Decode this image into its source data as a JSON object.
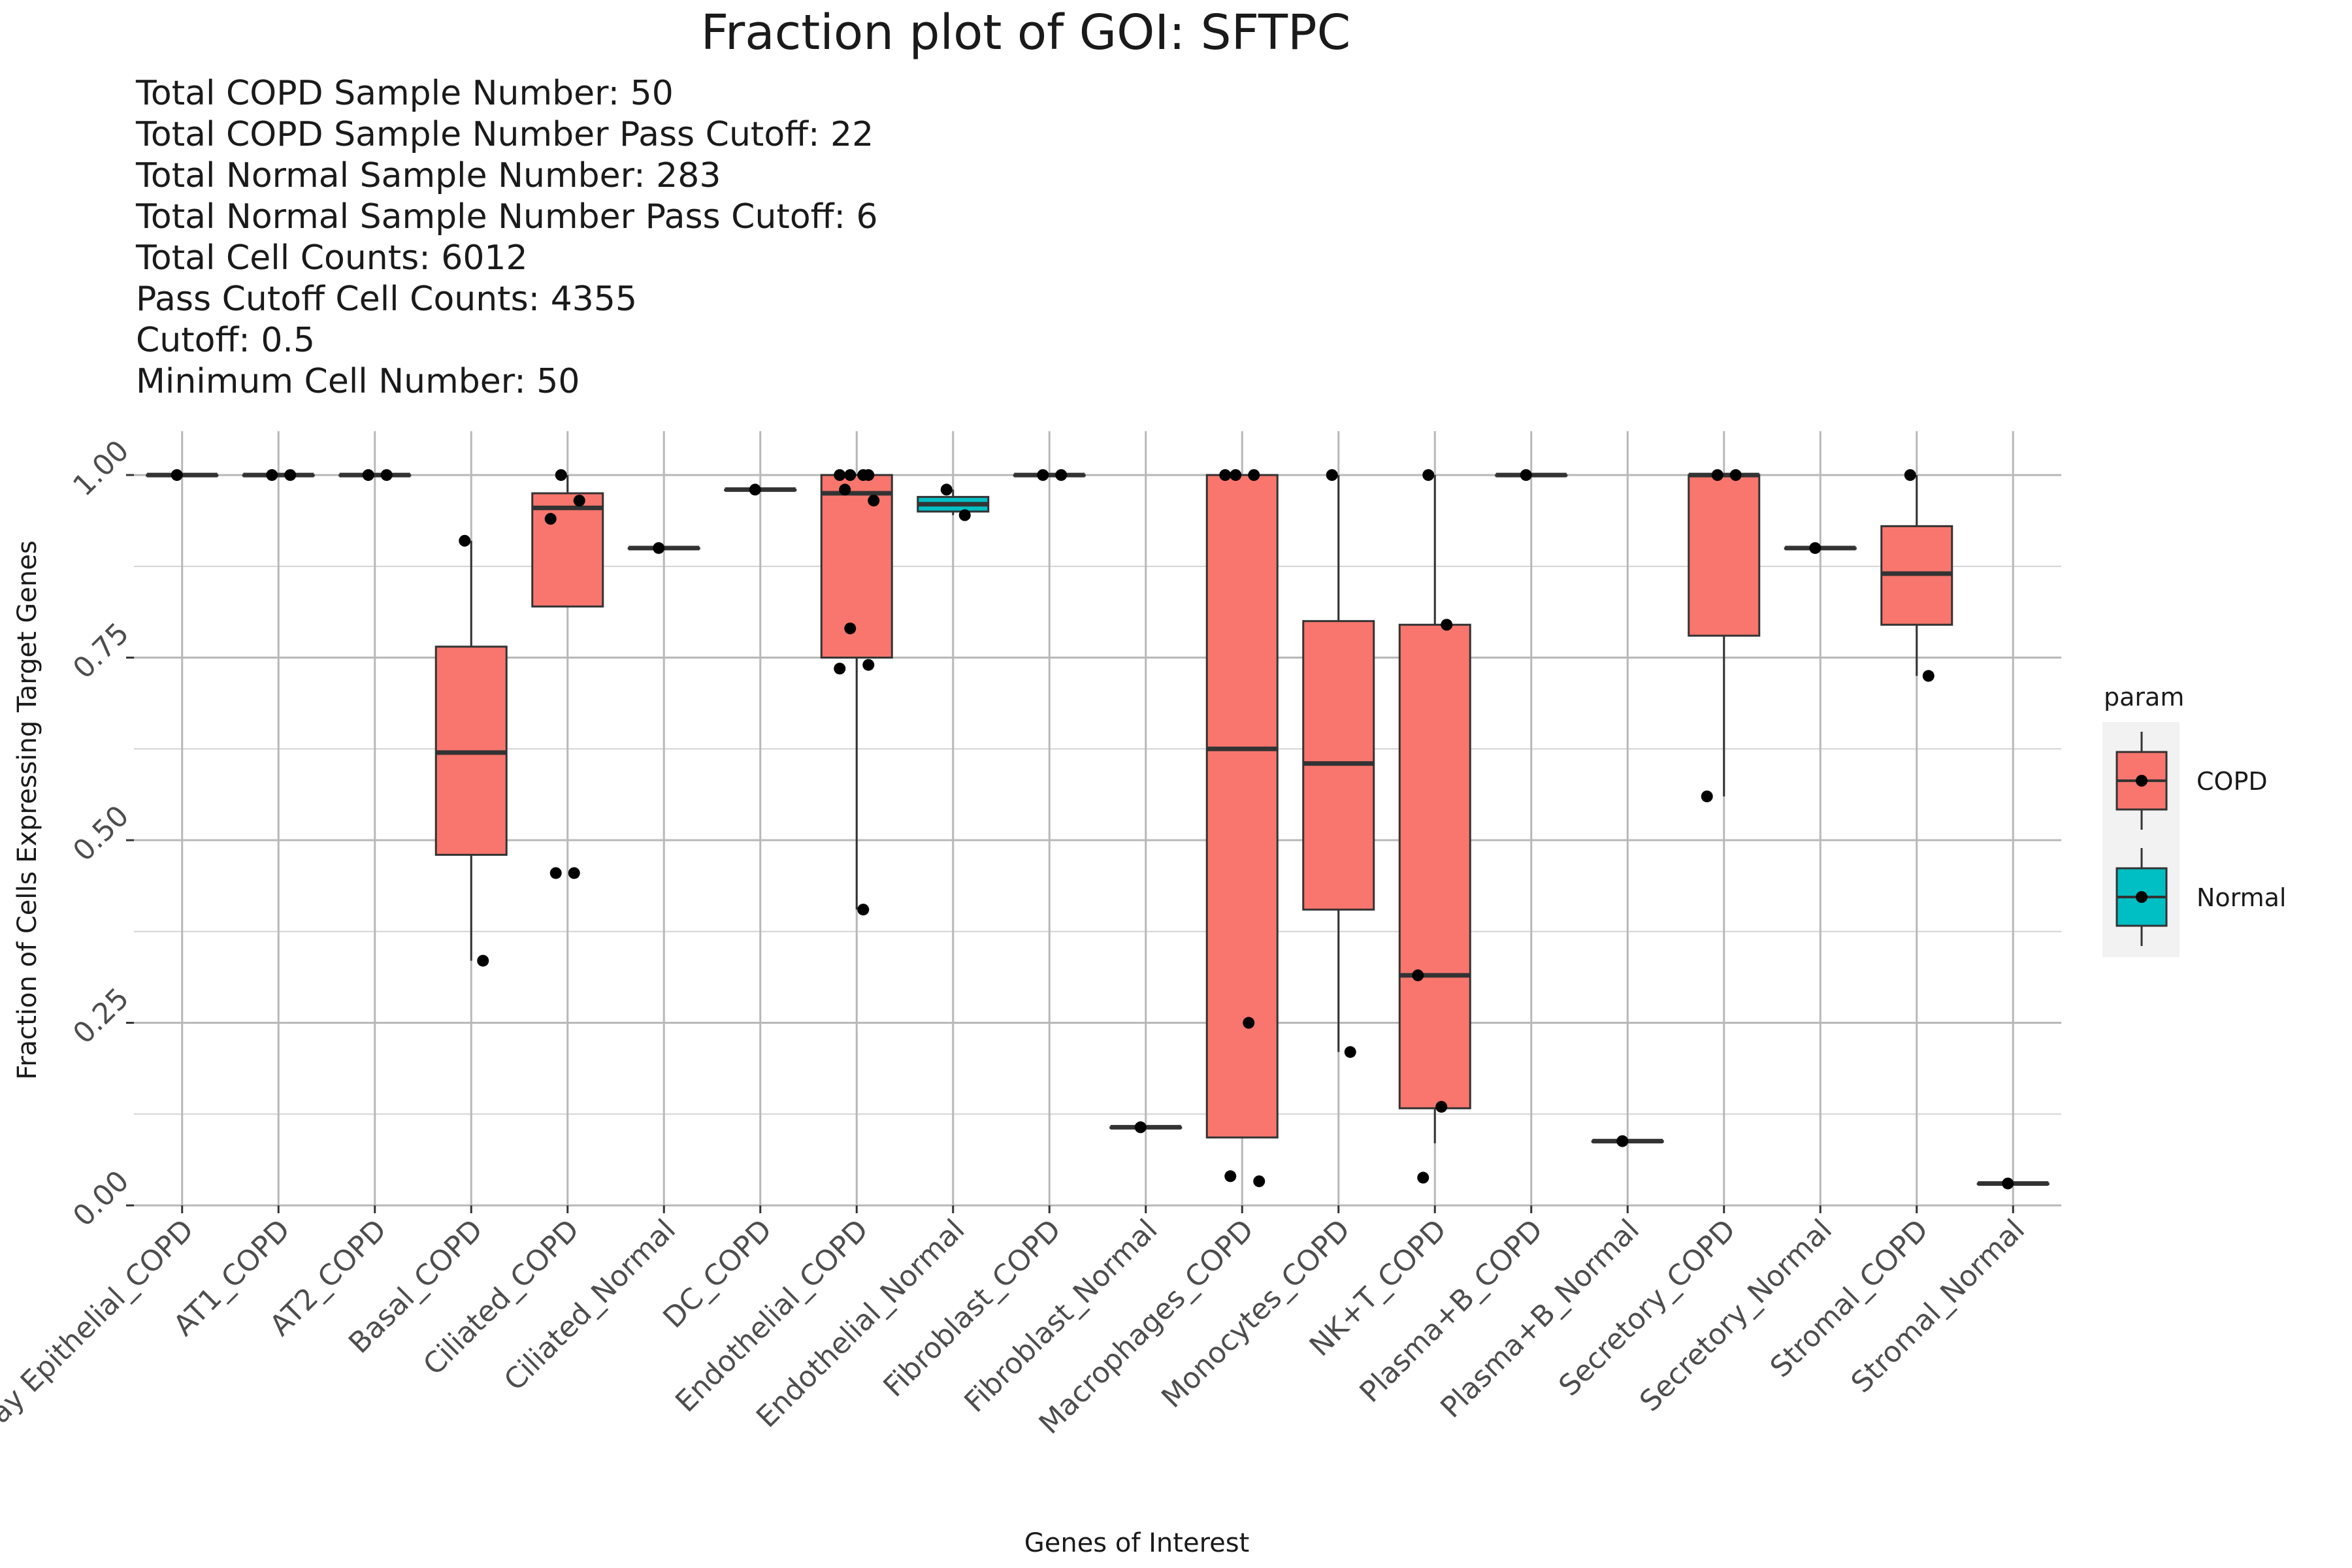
{
  "chart_data": {
    "type": "box",
    "title": "Fraction plot of GOI: SFTPC",
    "subtitle_lines": [
      "Total COPD Sample Number: 50",
      "Total COPD Sample Number Pass Cutoff: 22",
      "Total Normal Sample Number: 283",
      "Total Normal Sample Number Pass Cutoff: 6",
      "Total Cell Counts: 6012",
      "Pass Cutoff Cell Counts: 4355",
      "Cutoff: 0.5",
      "Minimum Cell Number: 50"
    ],
    "xlabel": "Genes of Interest",
    "ylabel": "Fraction of Cells Expressing Target Genes",
    "ylim": [
      0,
      1.06
    ],
    "y_ticks": [
      {
        "value": 0.0,
        "label": "0.00"
      },
      {
        "value": 0.25,
        "label": "0.25"
      },
      {
        "value": 0.5,
        "label": "0.50"
      },
      {
        "value": 0.75,
        "label": "0.75"
      },
      {
        "value": 1.0,
        "label": "1.00"
      }
    ],
    "grid": true,
    "legend": {
      "title": "param",
      "placement": "right",
      "entries": [
        {
          "label": "COPD",
          "color": "#F8766D"
        },
        {
          "label": "Normal",
          "color": "#00BFC4"
        }
      ]
    },
    "categories": [
      {
        "label": "Airway Epithelial_COPD",
        "group": "COPD",
        "box": {
          "q1": 1.0,
          "median": 1.0,
          "q3": 1.0,
          "whisker_low": 1.0,
          "whisker_high": 1.0
        },
        "points": [
          1.0
        ]
      },
      {
        "label": "AT1_COPD",
        "group": "COPD",
        "box": {
          "q1": 1.0,
          "median": 1.0,
          "q3": 1.0,
          "whisker_low": 1.0,
          "whisker_high": 1.0
        },
        "points": [
          1.0,
          1.0
        ]
      },
      {
        "label": "AT2_COPD",
        "group": "COPD",
        "box": {
          "q1": 1.0,
          "median": 1.0,
          "q3": 1.0,
          "whisker_low": 1.0,
          "whisker_high": 1.0
        },
        "points": [
          1.0,
          1.0
        ]
      },
      {
        "label": "Basal_COPD",
        "group": "COPD",
        "box": {
          "q1": 0.48,
          "median": 0.62,
          "q3": 0.765,
          "whisker_low": 0.335,
          "whisker_high": 0.91
        },
        "points": [
          0.91,
          0.335
        ]
      },
      {
        "label": "Ciliated_COPD",
        "group": "COPD",
        "box": {
          "q1": 0.82,
          "median": 0.955,
          "q3": 0.975,
          "whisker_low": 0.82,
          "whisker_high": 1.0
        },
        "points": [
          1.0,
          0.965,
          0.94,
          0.455,
          0.455
        ]
      },
      {
        "label": "Ciliated_Normal",
        "group": "COPD",
        "box": {
          "q1": 0.9,
          "median": 0.9,
          "q3": 0.9,
          "whisker_low": 0.9,
          "whisker_high": 0.9
        },
        "points": [
          0.9
        ]
      },
      {
        "label": "DC_COPD",
        "group": "COPD",
        "box": {
          "q1": 0.98,
          "median": 0.98,
          "q3": 0.98,
          "whisker_low": 0.98,
          "whisker_high": 0.98
        },
        "points": [
          0.98
        ]
      },
      {
        "label": "Endothelial_COPD",
        "group": "COPD",
        "box": {
          "q1": 0.75,
          "median": 0.975,
          "q3": 1.0,
          "whisker_low": 0.405,
          "whisker_high": 1.0
        },
        "points": [
          1.0,
          1.0,
          1.0,
          1.0,
          0.98,
          0.965,
          0.79,
          0.74,
          0.735,
          0.405
        ]
      },
      {
        "label": "Endothelial_Normal",
        "group": "Normal",
        "box": {
          "q1": 0.95,
          "median": 0.96,
          "q3": 0.97,
          "whisker_low": 0.945,
          "whisker_high": 0.98
        },
        "points": [
          0.98,
          0.945
        ]
      },
      {
        "label": "Fibroblast_COPD",
        "group": "COPD",
        "box": {
          "q1": 1.0,
          "median": 1.0,
          "q3": 1.0,
          "whisker_low": 1.0,
          "whisker_high": 1.0
        },
        "points": [
          1.0,
          1.0
        ]
      },
      {
        "label": "Fibroblast_Normal",
        "group": "COPD",
        "box": {
          "q1": 0.107,
          "median": 0.107,
          "q3": 0.107,
          "whisker_low": 0.107,
          "whisker_high": 0.107
        },
        "points": [
          0.107
        ]
      },
      {
        "label": "Macrophages_COPD",
        "group": "COPD",
        "box": {
          "q1": 0.093,
          "median": 0.625,
          "q3": 1.0,
          "whisker_low": 0.093,
          "whisker_high": 1.0
        },
        "points": [
          1.0,
          1.0,
          1.0,
          0.25,
          0.04,
          0.033
        ]
      },
      {
        "label": "Monocytes_COPD",
        "group": "COPD",
        "box": {
          "q1": 0.405,
          "median": 0.605,
          "q3": 0.8,
          "whisker_low": 0.21,
          "whisker_high": 1.0
        },
        "points": [
          1.0,
          0.21
        ]
      },
      {
        "label": "NK+T_COPD",
        "group": "COPD",
        "box": {
          "q1": 0.133,
          "median": 0.315,
          "q3": 0.795,
          "whisker_low": 0.085,
          "whisker_high": 1.0
        },
        "points": [
          1.0,
          0.795,
          0.315,
          0.135,
          0.038
        ]
      },
      {
        "label": "Plasma+B_COPD",
        "group": "COPD",
        "box": {
          "q1": 1.0,
          "median": 1.0,
          "q3": 1.0,
          "whisker_low": 1.0,
          "whisker_high": 1.0
        },
        "points": [
          1.0
        ]
      },
      {
        "label": "Plasma+B_Normal",
        "group": "COPD",
        "box": {
          "q1": 0.088,
          "median": 0.088,
          "q3": 0.088,
          "whisker_low": 0.088,
          "whisker_high": 0.088
        },
        "points": [
          0.088
        ]
      },
      {
        "label": "Secretory_COPD",
        "group": "COPD",
        "box": {
          "q1": 0.78,
          "median": 1.0,
          "q3": 1.0,
          "whisker_low": 0.56,
          "whisker_high": 1.0
        },
        "points": [
          1.0,
          1.0,
          0.56
        ]
      },
      {
        "label": "Secretory_Normal",
        "group": "COPD",
        "box": {
          "q1": 0.9,
          "median": 0.9,
          "q3": 0.9,
          "whisker_low": 0.9,
          "whisker_high": 0.9
        },
        "points": [
          0.9
        ]
      },
      {
        "label": "Stromal_COPD",
        "group": "COPD",
        "box": {
          "q1": 0.795,
          "median": 0.865,
          "q3": 0.93,
          "whisker_low": 0.725,
          "whisker_high": 1.0
        },
        "points": [
          1.0,
          0.725
        ]
      },
      {
        "label": "Stromal_Normal",
        "group": "COPD",
        "box": {
          "q1": 0.03,
          "median": 0.03,
          "q3": 0.03,
          "whisker_low": 0.03,
          "whisker_high": 0.03
        },
        "points": [
          0.03
        ]
      }
    ]
  }
}
